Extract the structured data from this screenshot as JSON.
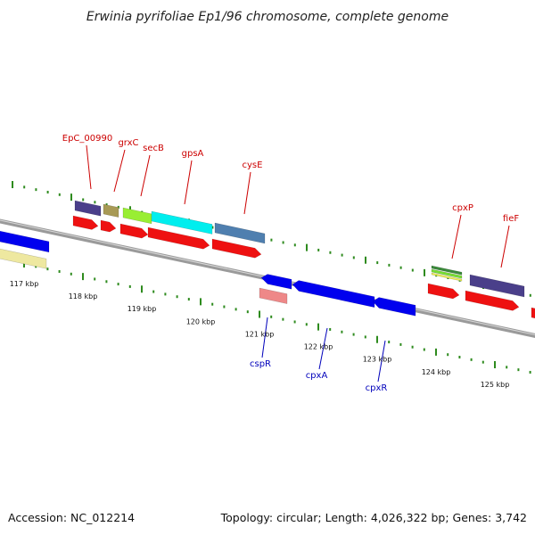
{
  "title": "Erwinia pyrifoliae Ep1/96 chromosome, complete genome",
  "footer": {
    "accession": "Accession: NC_012214",
    "summary": "Topology: circular; Length: 4,026,322 bp; Genes: 3,742"
  },
  "ruler_ticks": [
    "117 kbp",
    "118 kbp",
    "119 kbp",
    "120 kbp",
    "121 kbp",
    "122 kbp",
    "123 kbp",
    "124 kbp",
    "125 kbp"
  ],
  "colors": {
    "backbone": "#7a7a7a",
    "tick": "#2e8b1e",
    "cds": "#ee1111",
    "label_forward": "#cc0000",
    "label_reverse": "#0000bb"
  },
  "genes_forward": [
    {
      "name": "EpC_00990",
      "color": "#4a3f8a"
    },
    {
      "name": "grxC",
      "color": "#a89a55"
    },
    {
      "name": "secB",
      "color": "#99ee33"
    },
    {
      "name": "gpsA",
      "color": "#00eeee"
    },
    {
      "name": "cysE",
      "color": "#4f7faf"
    },
    {
      "name": "cpxP",
      "color": "#3a8a3a"
    },
    {
      "name": "fieF",
      "color": "#4a3f8a"
    }
  ],
  "genes_reverse": [
    {
      "name": "cspR",
      "color": "#ee8888"
    },
    {
      "name": "cpxA",
      "color": "#0000ee"
    },
    {
      "name": "cpxR",
      "color": "#0000ee"
    }
  ],
  "unlabeled_features": [
    {
      "color": "#0000ee"
    },
    {
      "color": "#eee8a0"
    }
  ]
}
